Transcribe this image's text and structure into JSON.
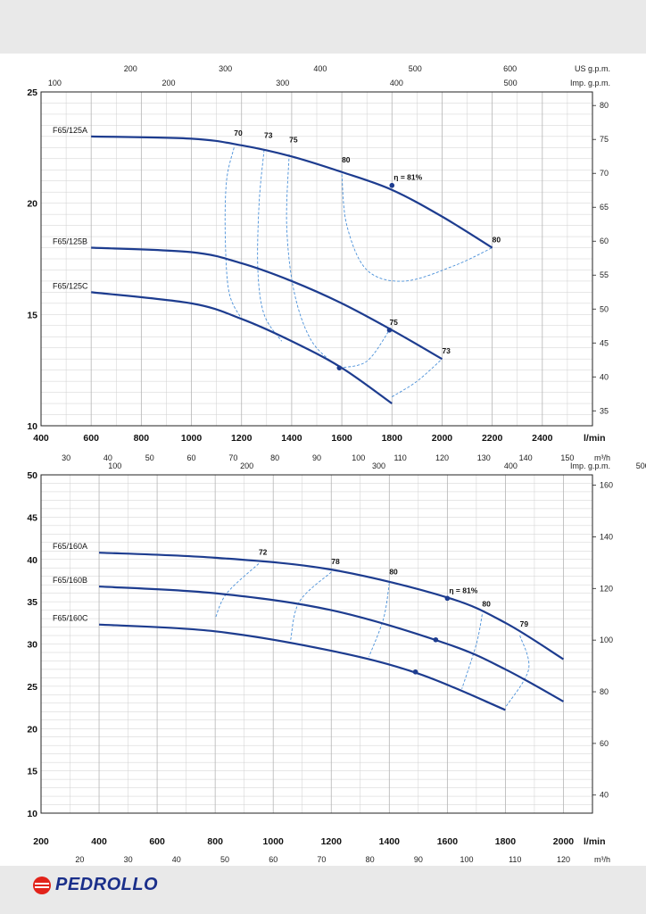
{
  "brand": {
    "name": "PEDROLLO",
    "color": "#1a2f8a",
    "mark_color": "#e2231a"
  },
  "colors": {
    "curve": "#1d3c8f",
    "dash": "#4a90d9",
    "grid": "#cfcfcf",
    "axis": "#222222"
  },
  "chart_data": [
    {
      "type": "line",
      "xlim": [
        400,
        2600
      ],
      "ylim": [
        10,
        25
      ],
      "x_unit": "l/min",
      "x_ticks": [
        400,
        600,
        800,
        1000,
        1200,
        1400,
        1600,
        1800,
        2000,
        2200,
        2400
      ],
      "y_ticks": [
        10,
        15,
        20,
        25
      ],
      "right_axis": {
        "ticks": [
          35,
          40,
          45,
          50,
          55,
          60,
          65,
          70,
          75,
          80
        ]
      },
      "secondary_axes": [
        {
          "unit": "m³/h",
          "ticks": [
            30,
            40,
            50,
            60,
            70,
            80,
            90,
            100,
            110,
            120,
            130,
            140,
            150
          ]
        },
        {
          "unit": "US g.p.m.",
          "ticks": [
            200,
            300,
            400,
            500,
            600
          ]
        },
        {
          "unit": "Imp. g.p.m.",
          "ticks": [
            100,
            200,
            300,
            400,
            500
          ]
        }
      ],
      "series": [
        {
          "name": "F65/125A",
          "x": [
            600,
            1000,
            1200,
            1400,
            1600,
            1800,
            2000,
            2200
          ],
          "y": [
            23.0,
            22.9,
            22.6,
            22.1,
            21.4,
            20.6,
            19.4,
            18.0
          ]
        },
        {
          "name": "F65/125B",
          "x": [
            600,
            1000,
            1200,
            1400,
            1600,
            1800,
            2000
          ],
          "y": [
            18.0,
            17.8,
            17.3,
            16.5,
            15.5,
            14.3,
            13.0
          ]
        },
        {
          "name": "F65/125C",
          "x": [
            600,
            1000,
            1200,
            1400,
            1600,
            1800
          ],
          "y": [
            16.0,
            15.5,
            14.8,
            13.8,
            12.6,
            11.0
          ]
        }
      ],
      "efficiency": [
        {
          "label": "70",
          "x": 1170,
          "y": 22.8
        },
        {
          "label": "73",
          "x": 1290,
          "y": 22.7
        },
        {
          "label": "75",
          "x": 1390,
          "y": 22.5
        },
        {
          "label": "80",
          "x": 1600,
          "y": 21.6
        },
        {
          "label": "η = 81%",
          "x": 1800,
          "y": 20.8
        },
        {
          "label": "80",
          "x": 2200,
          "y": 18.0
        },
        {
          "label": "75",
          "x": 1790,
          "y": 14.3
        },
        {
          "label": "73",
          "x": 2000,
          "y": 13.0
        }
      ]
    },
    {
      "type": "line",
      "xlim": [
        200,
        2100
      ],
      "ylim": [
        10,
        50
      ],
      "x_unit": "l/min",
      "x_ticks": [
        200,
        400,
        600,
        800,
        1000,
        1200,
        1400,
        1600,
        1800,
        2000
      ],
      "y_ticks": [
        10,
        15,
        20,
        25,
        30,
        35,
        40,
        45,
        50
      ],
      "right_axis": {
        "ticks": [
          40,
          60,
          80,
          100,
          120,
          140,
          160
        ]
      },
      "secondary_axes": [
        {
          "unit": "m³/h",
          "ticks": [
            20,
            30,
            40,
            50,
            60,
            70,
            80,
            90,
            100,
            110,
            120
          ]
        },
        {
          "unit": "Imp. g.p.m.",
          "ticks": [
            100,
            200,
            300,
            400,
            500
          ]
        }
      ],
      "series": [
        {
          "name": "F65/160A",
          "x": [
            400,
            800,
            1200,
            1600,
            1800,
            2000
          ],
          "y": [
            40.8,
            40.2,
            38.8,
            35.5,
            32.5,
            28.2
          ]
        },
        {
          "name": "F65/160B",
          "x": [
            400,
            800,
            1200,
            1600,
            1800,
            2000
          ],
          "y": [
            36.8,
            36.0,
            34.0,
            30.0,
            27.0,
            23.2
          ]
        },
        {
          "name": "F65/160C",
          "x": [
            400,
            800,
            1200,
            1500,
            1800
          ],
          "y": [
            32.3,
            31.5,
            29.2,
            26.5,
            22.2
          ]
        }
      ],
      "efficiency": [
        {
          "label": "72",
          "x": 950,
          "y": 39.9
        },
        {
          "label": "78",
          "x": 1200,
          "y": 38.8
        },
        {
          "label": "80",
          "x": 1400,
          "y": 37.6
        },
        {
          "label": "η = 81%",
          "x": 1600,
          "y": 35.4
        },
        {
          "label": "80",
          "x": 1720,
          "y": 33.8
        },
        {
          "label": "79",
          "x": 1850,
          "y": 31.4
        }
      ]
    }
  ]
}
